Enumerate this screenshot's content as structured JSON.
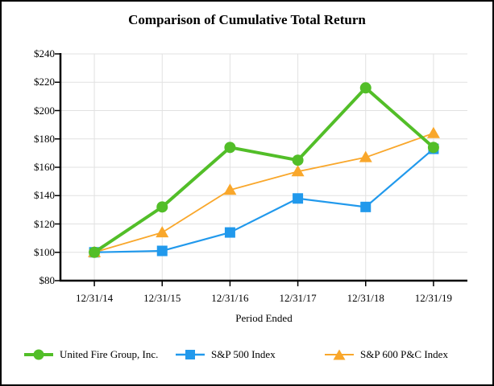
{
  "window": {
    "background": "#ffffff",
    "border_color": "#000000"
  },
  "chart_data": {
    "type": "line",
    "title": "Comparison of Cumulative Total Return",
    "xlabel": "Period Ended",
    "ylabel": "",
    "categories": [
      "12/31/14",
      "12/31/15",
      "12/31/16",
      "12/31/17",
      "12/31/18",
      "12/31/19"
    ],
    "y_ticks": [
      "$240",
      "$220",
      "$200",
      "$180",
      "$160",
      "$140",
      "$120",
      "$100",
      "$80"
    ],
    "ylim": [
      80,
      240
    ],
    "y_tick_step": 20,
    "grid": true,
    "legend_position": "bottom",
    "z_order": [
      1,
      2,
      0
    ],
    "series": [
      {
        "name": "United Fire Group, Inc.",
        "marker": "circle",
        "color": "#52BE28",
        "line_width": 4,
        "values": [
          100,
          132,
          174,
          165,
          216,
          174
        ]
      },
      {
        "name": "S&P 500 Index",
        "marker": "square",
        "color": "#2199EC",
        "line_width": 2.2,
        "values": [
          100,
          101,
          114,
          138,
          132,
          173
        ]
      },
      {
        "name": "S&P 600 P&C Index",
        "marker": "triangle",
        "color": "#F9A72B",
        "line_width": 1.8,
        "values": [
          100,
          114,
          144,
          157,
          167,
          184
        ]
      }
    ],
    "colors": {
      "grid": "#E1E1E1",
      "axis": "#000000",
      "text": "#000000"
    }
  }
}
